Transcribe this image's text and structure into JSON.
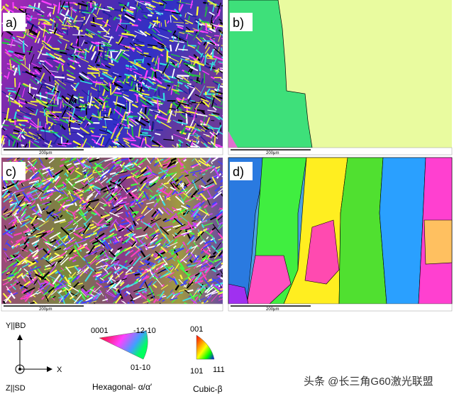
{
  "panels": [
    {
      "label": "a)",
      "scale_bar": "200μm"
    },
    {
      "label": "b)",
      "scale_bar": "200μm"
    },
    {
      "label": "c)",
      "scale_bar": "200μm"
    },
    {
      "label": "d)",
      "scale_bar": "200μm"
    }
  ],
  "axes": {
    "y": "Y||BD",
    "z": "Z||SD",
    "x": "X"
  },
  "hexagonal_key": {
    "corner_1": "0001",
    "corner_2": "-12-10",
    "corner_3": "01-10",
    "caption": "Hexagonal- α/α′"
  },
  "cubic_key": {
    "corner_1": "001",
    "corner_2": "101",
    "corner_3": "111",
    "caption": "Cubic-β"
  },
  "watermark": "头条 @长三角G60激光联盟"
}
